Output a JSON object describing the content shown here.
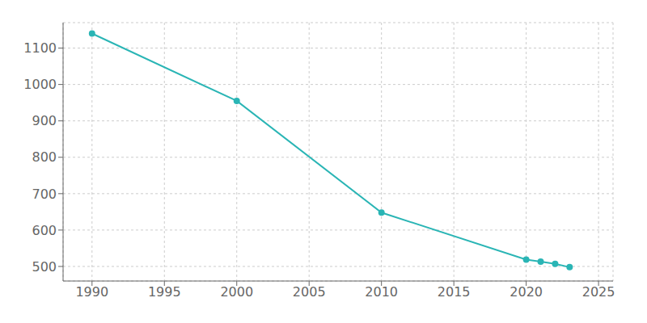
{
  "chart_data": {
    "type": "line",
    "x": [
      1990,
      2000,
      2010,
      2020,
      2021,
      2022,
      2023
    ],
    "values": [
      1140,
      955,
      648,
      519,
      513,
      507,
      498
    ],
    "color": "#2ab5b5",
    "marker": "circle",
    "xlim": [
      1988,
      2026
    ],
    "ylim": [
      460,
      1170
    ],
    "xticks": [
      1990,
      1995,
      2000,
      2005,
      2010,
      2015,
      2020,
      2025
    ],
    "yticks": [
      500,
      600,
      700,
      800,
      900,
      1000,
      1100
    ],
    "grid": true
  }
}
